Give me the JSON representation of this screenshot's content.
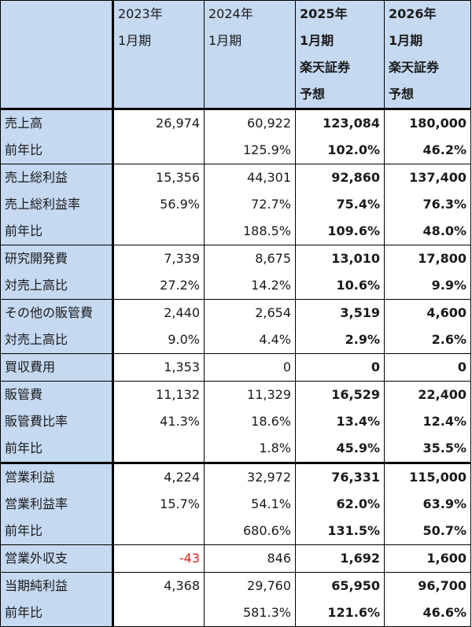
{
  "headers": [
    "",
    "2023年\n1月期",
    "2024年\n1月期",
    "2025年\n1月期\n楽天証券\n予想",
    "2026年\n1月期\n楽天証券\n予想"
  ],
  "rows": [
    {
      "label": "売上高",
      "values": [
        "26,974",
        "60,922",
        "123,084",
        "180,000"
      ]
    },
    {
      "label": "前年比",
      "values": [
        "",
        "125.9%",
        "102.0%",
        "46.2%"
      ]
    },
    {
      "label": "売上総利益",
      "values": [
        "15,356",
        "44,301",
        "92,860",
        "137,400"
      ]
    },
    {
      "label": "売上総利益率",
      "values": [
        "56.9%",
        "72.7%",
        "75.4%",
        "76.3%"
      ]
    },
    {
      "label": "前年比",
      "values": [
        "",
        "188.5%",
        "109.6%",
        "48.0%"
      ]
    },
    {
      "label": "研究開発費",
      "values": [
        "7,339",
        "8,675",
        "13,010",
        "17,800"
      ]
    },
    {
      "label": "対売上高比",
      "values": [
        "27.2%",
        "14.2%",
        "10.6%",
        "9.9%"
      ]
    },
    {
      "label": "その他の販管費",
      "values": [
        "2,440",
        "2,654",
        "3,519",
        "4,600"
      ]
    },
    {
      "label": "対売上高比",
      "values": [
        "9.0%",
        "4.4%",
        "2.9%",
        "2.6%"
      ]
    },
    {
      "label": "買収費用",
      "values": [
        "1,353",
        "0",
        "0",
        "0"
      ]
    },
    {
      "label": "販管費",
      "values": [
        "11,132",
        "11,329",
        "16,529",
        "22,400"
      ]
    },
    {
      "label": "販管費比率",
      "values": [
        "41.3%",
        "18.6%",
        "13.4%",
        "12.4%"
      ]
    },
    {
      "label": "前年比",
      "values": [
        "",
        "1.8%",
        "45.9%",
        "35.5%"
      ]
    },
    {
      "label": "営業利益",
      "values": [
        "4,224",
        "32,972",
        "76,331",
        "115,000"
      ]
    },
    {
      "label": "営業利益率",
      "values": [
        "15.7%",
        "54.1%",
        "62.0%",
        "63.9%"
      ]
    },
    {
      "label": "前年比",
      "values": [
        "",
        "680.6%",
        "131.5%",
        "50.7%"
      ]
    },
    {
      "label": "営業外収支",
      "values": [
        "-43",
        "846",
        "1,692",
        "1,600"
      ]
    },
    {
      "label": "当期純利益",
      "values": [
        "4,368",
        "29,760",
        "65,950",
        "96,700"
      ]
    },
    {
      "label": "前年比",
      "values": [
        "",
        "581.3%",
        "121.6%",
        "46.6%"
      ]
    }
  ],
  "colors": {
    "header_bg": "#c5d9f1",
    "negative": "#e0201b"
  }
}
